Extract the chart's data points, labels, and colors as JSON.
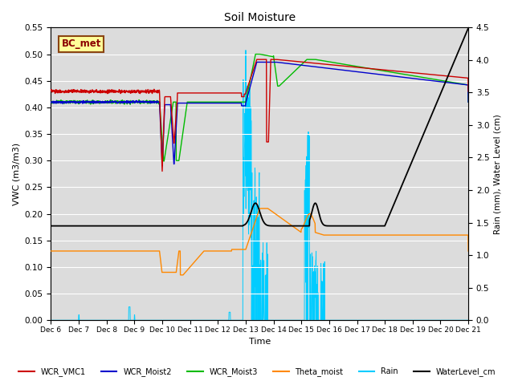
{
  "title": "Soil Moisture",
  "xlabel": "Time",
  "ylabel_left": "VWC (m3/m3)",
  "ylabel_right": "Rain (mm), Water Level (cm)",
  "ylim_left": [
    0.0,
    0.55
  ],
  "ylim_right": [
    0.0,
    4.5
  ],
  "background_color": "#dcdcdc",
  "annotation_text": "BC_met",
  "annotation_box_color": "#ffff99",
  "annotation_box_edge": "#8B4513",
  "series_colors": {
    "WCR_VMC1": "#cc0000",
    "WCR_Moist2": "#0000cc",
    "WCR_Moist3": "#00bb00",
    "Theta_moist": "#ff8800",
    "Rain": "#00ccff",
    "WaterLevel_cm": "#000000"
  },
  "tick_labels": [
    "Dec 6",
    "Dec 7",
    "Dec 8",
    "Dec 9",
    "Dec 10",
    "Dec 11",
    "Dec 12",
    "Dec 13",
    "Dec 14",
    "Dec 15",
    "Dec 16",
    "Dec 17",
    "Dec 18",
    "Dec 19",
    "Dec 20",
    "Dec 21"
  ]
}
